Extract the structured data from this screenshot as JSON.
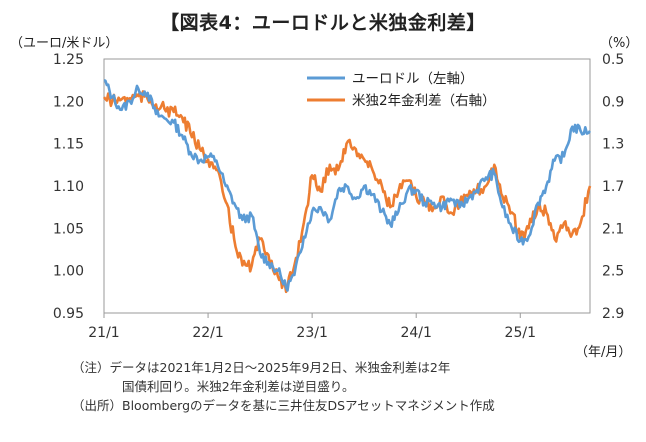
{
  "title": "【図表4：ユーロドルと米独金利差】",
  "unit_left": "（ユーロ/米ドル）",
  "unit_right": "（%）",
  "x_unit": "（年/月）",
  "notes": {
    "line1": "（注）データは2021年1月2日～2025年9月2日、米独金利差は2年",
    "line2": "国債利回り。米独2年金利差は逆目盛り。",
    "line3": "（出所）Bloombergのデータを基に三井住友DSアセットマネジメント作成"
  },
  "chart_data": {
    "type": "line",
    "title": "【図表4：ユーロドルと米独金利差】",
    "x_tick_labels": [
      "21/1",
      "22/1",
      "23/1",
      "24/1",
      "25/1"
    ],
    "x_range": [
      2021.0,
      2025.67
    ],
    "y_left": {
      "label": "（ユーロ/米ドル）",
      "range": [
        0.95,
        1.25
      ],
      "ticks": [
        "0.95",
        "1.00",
        "1.05",
        "1.10",
        "1.15",
        "1.20",
        "1.25"
      ]
    },
    "y_right": {
      "label": "（%）",
      "range": [
        0.5,
        2.9
      ],
      "inverted": true,
      "ticks": [
        "0.5",
        "0.9",
        "1.3",
        "1.7",
        "2.1",
        "2.5",
        "2.9"
      ]
    },
    "legend": {
      "placement": "top-right",
      "entries": [
        "ユーロドル（左軸）",
        "米独2年金利差（右軸）"
      ]
    },
    "series": [
      {
        "name": "ユーロドル（左軸）",
        "axis": "left",
        "color": "#5B9BD5",
        "x": [
          2021.0,
          2021.08,
          2021.17,
          2021.25,
          2021.33,
          2021.42,
          2021.5,
          2021.58,
          2021.67,
          2021.75,
          2021.83,
          2021.92,
          2022.0,
          2022.08,
          2022.17,
          2022.25,
          2022.33,
          2022.42,
          2022.5,
          2022.58,
          2022.67,
          2022.75,
          2022.83,
          2022.92,
          2023.0,
          2023.08,
          2023.17,
          2023.25,
          2023.33,
          2023.42,
          2023.5,
          2023.58,
          2023.67,
          2023.75,
          2023.83,
          2023.92,
          2024.0,
          2024.08,
          2024.17,
          2024.25,
          2024.33,
          2024.42,
          2024.5,
          2024.58,
          2024.67,
          2024.75,
          2024.83,
          2024.92,
          2025.0,
          2025.08,
          2025.17,
          2025.25,
          2025.33,
          2025.42,
          2025.5,
          2025.58,
          2025.67
        ],
        "values": [
          1.225,
          1.205,
          1.19,
          1.2,
          1.215,
          1.21,
          1.185,
          1.18,
          1.175,
          1.16,
          1.14,
          1.13,
          1.135,
          1.13,
          1.1,
          1.08,
          1.06,
          1.065,
          1.02,
          1.01,
          1.0,
          0.98,
          0.995,
          1.04,
          1.07,
          1.075,
          1.06,
          1.095,
          1.1,
          1.085,
          1.1,
          1.09,
          1.07,
          1.055,
          1.07,
          1.095,
          1.095,
          1.08,
          1.08,
          1.075,
          1.085,
          1.075,
          1.085,
          1.095,
          1.11,
          1.115,
          1.075,
          1.05,
          1.035,
          1.04,
          1.08,
          1.1,
          1.13,
          1.135,
          1.17,
          1.165,
          1.165
        ]
      },
      {
        "name": "米独2年金利差（右軸）",
        "axis": "right",
        "color": "#ED7D31",
        "x": [
          2021.0,
          2021.08,
          2021.17,
          2021.25,
          2021.33,
          2021.42,
          2021.5,
          2021.58,
          2021.67,
          2021.75,
          2021.83,
          2021.92,
          2022.0,
          2022.08,
          2022.17,
          2022.25,
          2022.33,
          2022.42,
          2022.5,
          2022.58,
          2022.67,
          2022.75,
          2022.83,
          2022.92,
          2023.0,
          2023.08,
          2023.17,
          2023.25,
          2023.33,
          2023.42,
          2023.5,
          2023.58,
          2023.67,
          2023.75,
          2023.83,
          2023.92,
          2024.0,
          2024.08,
          2024.17,
          2024.25,
          2024.33,
          2024.42,
          2024.5,
          2024.58,
          2024.67,
          2024.75,
          2024.83,
          2024.92,
          2025.0,
          2025.08,
          2025.17,
          2025.25,
          2025.33,
          2025.42,
          2025.5,
          2025.58,
          2025.67
        ],
        "values": [
          0.86,
          0.9,
          0.88,
          0.87,
          0.85,
          0.88,
          0.93,
          0.97,
          1.0,
          1.05,
          1.2,
          1.35,
          1.45,
          1.55,
          1.85,
          2.2,
          2.45,
          2.45,
          2.2,
          2.35,
          2.55,
          2.7,
          2.45,
          2.05,
          1.6,
          1.75,
          1.5,
          1.55,
          1.3,
          1.35,
          1.45,
          1.55,
          1.7,
          1.9,
          1.75,
          1.65,
          1.8,
          1.85,
          1.9,
          1.8,
          1.95,
          1.85,
          1.8,
          1.75,
          1.7,
          1.5,
          1.8,
          1.95,
          2.2,
          2.1,
          1.9,
          1.95,
          2.2,
          2.05,
          2.15,
          2.05,
          1.7
        ]
      }
    ]
  }
}
